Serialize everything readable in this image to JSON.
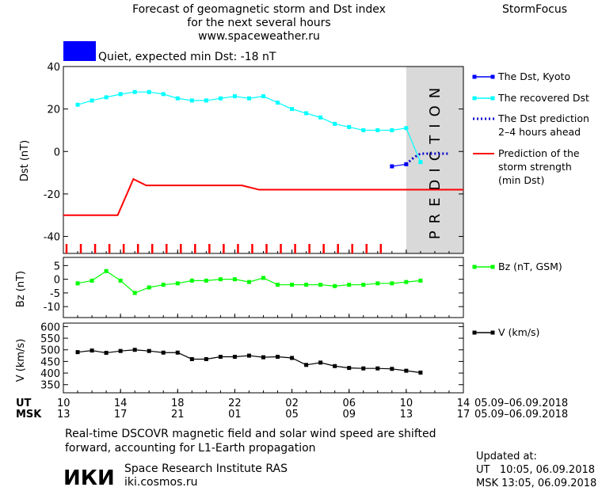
{
  "header": {
    "title_line1": "Forecast of geomagnetic storm and Dst index",
    "title_line2": "for the next several hours",
    "url": "www.spaceweather.ru",
    "brand": "StormFocus",
    "status_text": "Quiet, expected min Dst: -18 nT",
    "status_color": "#0000ff"
  },
  "footer": {
    "note_line1": "Real-time DSCOVR magnetic field and solar wind speed are shifted",
    "note_line2": "forward, accounting for L1-Earth propagation",
    "institute_logo": "ИКИ",
    "institute_name": "Space Research Institute RAS",
    "institute_url": "iki.cosmos.ru",
    "updated_label": "Updated at:",
    "updated_ut": "UT   10:05, 06.09.2018",
    "updated_msk": "MSK 13:05, 06.09.2018"
  },
  "chart_data": [
    {
      "type": "line",
      "ylabel": "Dst (nT)",
      "ylim": [
        -48,
        40
      ],
      "yticks": [
        40,
        20,
        0,
        -20,
        -40
      ],
      "prediction_label": "PREDICTION",
      "prediction_band_x": [
        10,
        14
      ],
      "series": [
        {
          "name": "The Dst, Kyoto",
          "color": "#0000ff",
          "x": [
            9,
            10
          ],
          "y": [
            -7,
            -6
          ]
        },
        {
          "name": "The recovered Dst",
          "color": "#00ffff",
          "x": [
            -13,
            -12,
            -11,
            -10,
            -9,
            -8,
            -7,
            -6,
            -5,
            -4,
            -3,
            -2,
            -1,
            0,
            1,
            2,
            3,
            4,
            5,
            6,
            7,
            8,
            9,
            10,
            11
          ],
          "y": [
            22,
            24,
            25.5,
            27,
            28,
            28,
            27,
            25,
            24,
            24,
            25,
            26,
            25,
            26,
            23,
            20,
            18,
            16,
            13,
            11.5,
            10,
            10,
            10,
            11,
            -5
          ]
        },
        {
          "name": "The Dst prediction\n2–4 hours ahead",
          "color": "#0000cc",
          "x": [
            10,
            10.5,
            11,
            12,
            13
          ],
          "y": [
            -6,
            -3,
            -1,
            -1,
            -1
          ]
        },
        {
          "name": "Prediction of the\nstorm strength\n(min Dst)",
          "color": "#ff0000",
          "x": [
            -14,
            -10.2,
            -9.1,
            -8.2,
            -4,
            -1.5,
            -0.3,
            14
          ],
          "y": [
            -30,
            -30,
            -13,
            -16,
            -16,
            -16,
            -18,
            -18
          ]
        }
      ],
      "storm_marker_hours": [
        -14,
        -13,
        -12,
        -11,
        -10,
        -9,
        -8,
        -7,
        -6,
        -5,
        -4,
        -3,
        -2,
        -1,
        0,
        1,
        2,
        3,
        4,
        5,
        6,
        7,
        8
      ]
    },
    {
      "type": "line",
      "ylabel": "Bz (nT)",
      "ylim": [
        -14,
        8
      ],
      "yticks": [
        5,
        0,
        -5,
        -10
      ],
      "series": [
        {
          "name": "Bz (nT, GSM)",
          "color": "#00ff00",
          "x": [
            -13,
            -12,
            -11,
            -10,
            -9,
            -8,
            -7,
            -6,
            -5,
            -4,
            -3,
            -2,
            -1,
            0,
            1,
            2,
            3,
            4,
            5,
            6,
            7,
            8,
            9,
            10,
            11
          ],
          "y": [
            -1.5,
            -0.5,
            3,
            -0.5,
            -5,
            -3,
            -2,
            -1.5,
            -0.5,
            -0.5,
            0,
            0,
            -1,
            0.5,
            -2,
            -2,
            -2,
            -2,
            -2.5,
            -2,
            -2,
            -1.5,
            -1.5,
            -1,
            -0.5
          ]
        }
      ]
    },
    {
      "type": "line",
      "ylabel": "V (km/s)",
      "ylim": [
        315,
        615
      ],
      "yticks": [
        600,
        550,
        500,
        450,
        400,
        350
      ],
      "series": [
        {
          "name": "V (km/s)",
          "color": "#000000",
          "x": [
            -13,
            -12,
            -11,
            -10,
            -9,
            -8,
            -7,
            -6,
            -5,
            -4,
            -3,
            -2,
            -1,
            0,
            1,
            2,
            3,
            4,
            5,
            6,
            7,
            8,
            9,
            10,
            11
          ],
          "y": [
            490,
            497,
            487,
            495,
            500,
            495,
            488,
            488,
            460,
            460,
            470,
            470,
            475,
            468,
            470,
            465,
            435,
            445,
            430,
            422,
            420,
            420,
            418,
            410,
            402
          ]
        }
      ]
    }
  ],
  "x_axis": {
    "ut_label": "UT",
    "msk_label": "MSK",
    "ut_ticks": [
      "10",
      "14",
      "18",
      "22",
      "02",
      "06",
      "10",
      "14"
    ],
    "msk_ticks": [
      "13",
      "17",
      "21",
      "01",
      "05",
      "09",
      "13",
      "17"
    ],
    "date_range_ut": "05.09–06.09.2018",
    "date_range_msk": "05.09–06.09.2018"
  }
}
